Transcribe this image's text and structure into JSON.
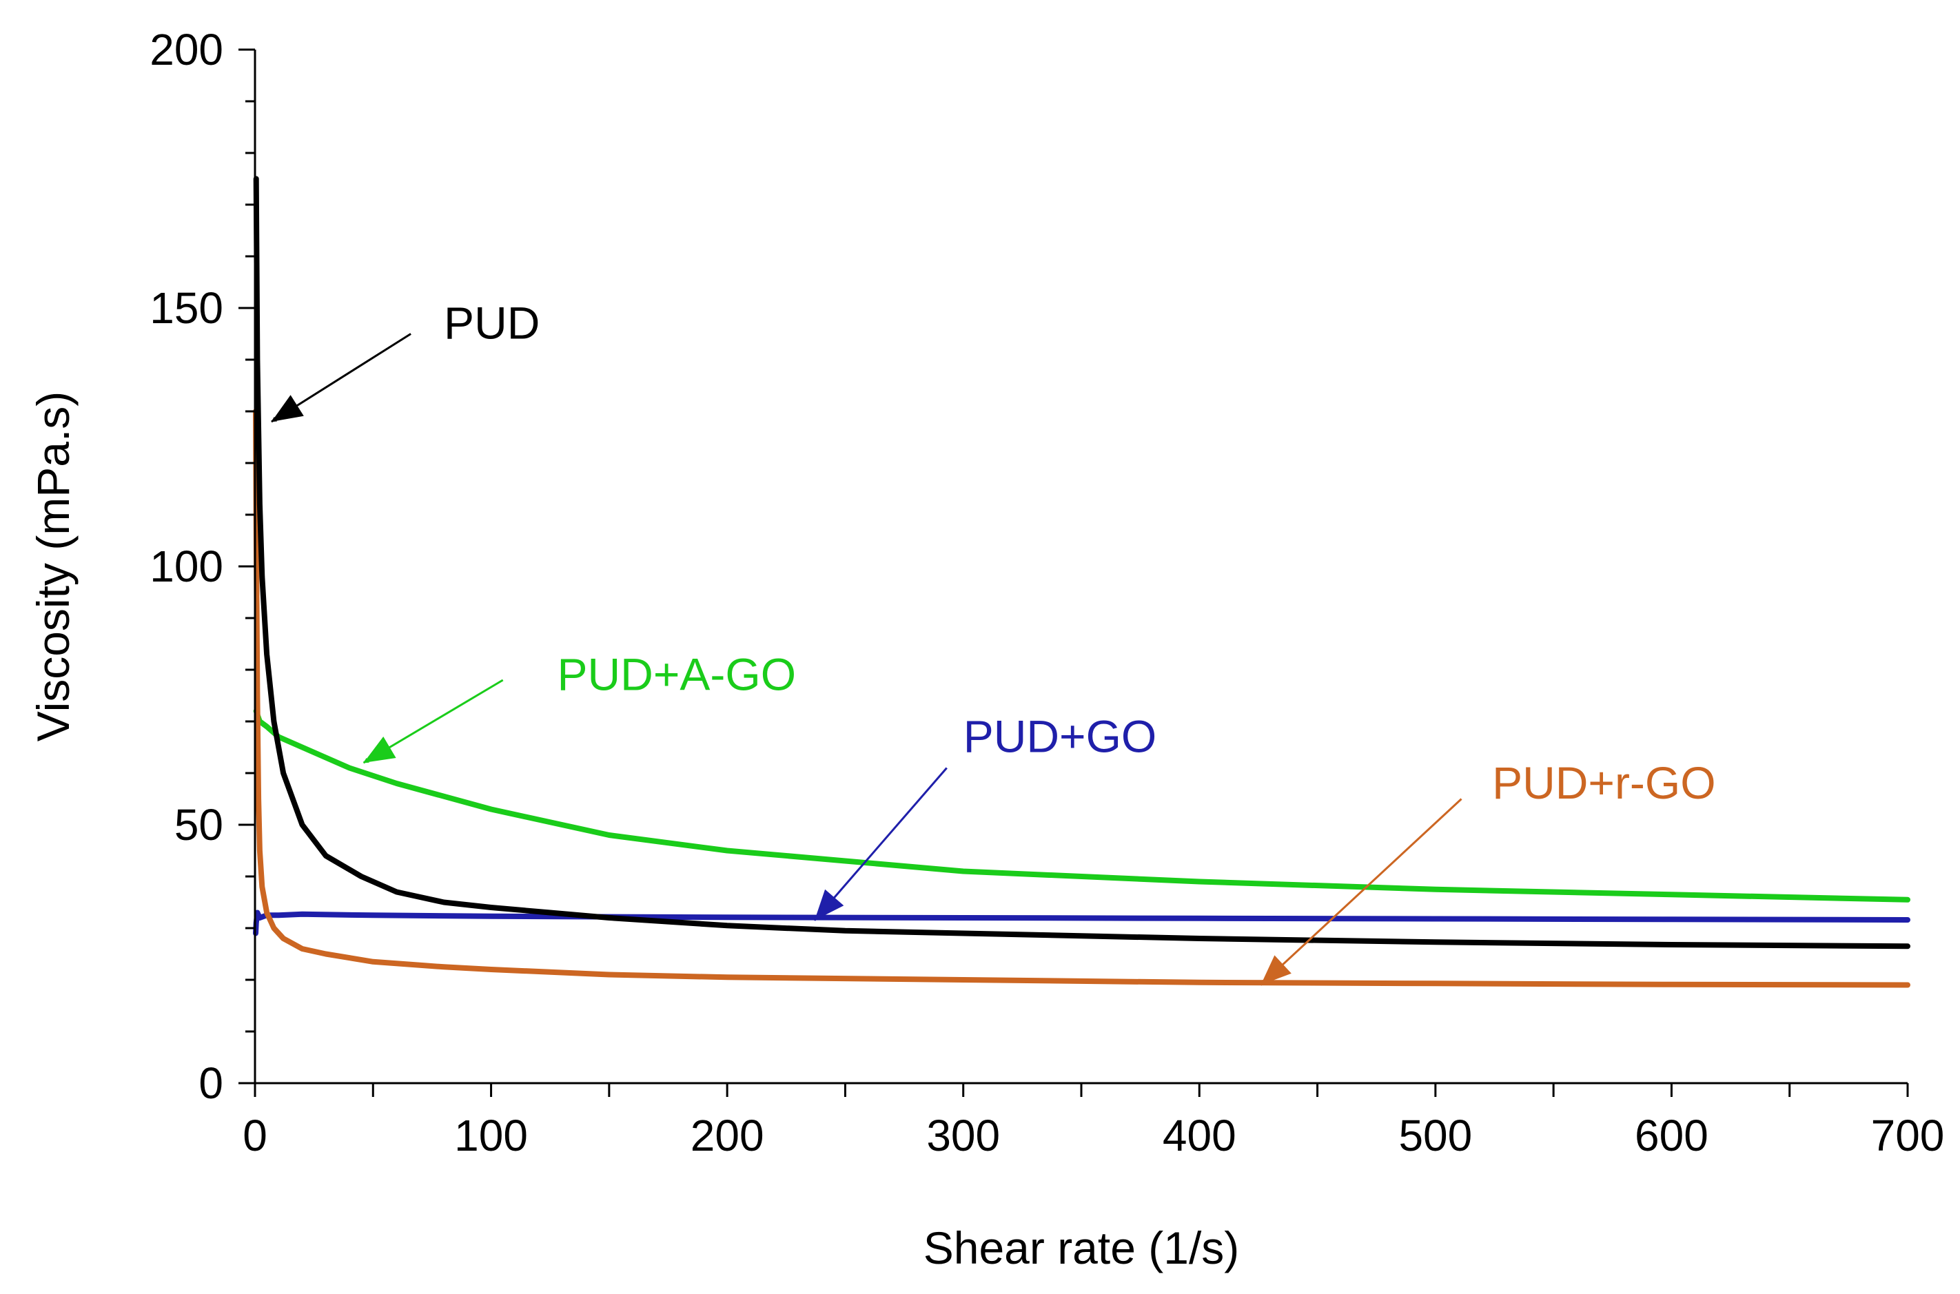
{
  "chart_data": {
    "type": "line",
    "title": "",
    "xlabel": "Shear rate (1/s)",
    "ylabel": "Viscosity (mPa.s)",
    "xlim": [
      0,
      700
    ],
    "ylim": [
      0,
      200
    ],
    "x_ticks": [
      0,
      100,
      200,
      300,
      400,
      500,
      600,
      700
    ],
    "y_ticks": [
      0,
      50,
      100,
      150,
      200
    ],
    "x_minor_step": 50,
    "y_minor_step": 10,
    "grid": false,
    "legend": "none (series labeled by arrow annotations)",
    "series": [
      {
        "name": "PUD",
        "color": "#000000",
        "x": [
          0.5,
          1,
          2,
          3,
          5,
          8,
          12,
          20,
          30,
          45,
          60,
          80,
          100,
          125,
          150,
          200,
          250,
          300,
          400,
          500,
          600,
          700
        ],
        "y": [
          175,
          140,
          112,
          98,
          83,
          70,
          60,
          50,
          44,
          40,
          37,
          35,
          34,
          33,
          32,
          30.5,
          29.5,
          29,
          28,
          27.3,
          26.8,
          26.5
        ]
      },
      {
        "name": "PUD+A-GO",
        "color": "#1ACC1A",
        "x": [
          0.5,
          2,
          5,
          10,
          20,
          40,
          60,
          100,
          150,
          200,
          250,
          300,
          400,
          500,
          600,
          700
        ],
        "y": [
          72,
          70,
          69,
          67,
          65,
          61,
          58,
          53,
          48,
          45,
          43,
          41,
          39,
          37.5,
          36.5,
          35.5
        ]
      },
      {
        "name": "PUD+GO",
        "color": "#1F1FAA",
        "x": [
          0.3,
          0.5,
          1,
          2,
          5,
          10,
          20,
          50,
          100,
          200,
          300,
          400,
          500,
          600,
          700
        ],
        "y": [
          29,
          31,
          33,
          32,
          32.5,
          32.5,
          32.7,
          32.5,
          32.3,
          32.1,
          32,
          31.9,
          31.8,
          31.7,
          31.6
        ]
      },
      {
        "name": "PUD+r-GO",
        "color": "#CC6622",
        "x": [
          0.3,
          0.5,
          1,
          1.5,
          2,
          3,
          5,
          8,
          12,
          20,
          30,
          50,
          80,
          100,
          150,
          200,
          300,
          400,
          500,
          600,
          700
        ],
        "y": [
          130,
          110,
          75,
          55,
          45,
          38,
          33,
          30,
          28,
          26,
          25,
          23.5,
          22.5,
          22,
          21,
          20.5,
          20,
          19.5,
          19.3,
          19.1,
          19
        ]
      }
    ],
    "annotations": [
      {
        "label": "PUD",
        "color": "#000000",
        "text_at": [
          80,
          147
        ],
        "arrow_from": [
          66,
          145
        ],
        "arrow_to": [
          7,
          128
        ]
      },
      {
        "label": "PUD+A-GO",
        "color": "#1ACC1A",
        "text_at": [
          128,
          79
        ],
        "arrow_from": [
          105,
          78
        ],
        "arrow_to": [
          46,
          62
        ]
      },
      {
        "label": "PUD+GO",
        "color": "#1F1FAA",
        "text_at": [
          300,
          67
        ],
        "arrow_from": [
          293,
          61
        ],
        "arrow_to": [
          237,
          31.5
        ]
      },
      {
        "label": "PUD+r-GO",
        "color": "#CC6622",
        "text_at": [
          524,
          58
        ],
        "arrow_from": [
          511,
          55
        ],
        "arrow_to": [
          426,
          19
        ]
      }
    ]
  }
}
